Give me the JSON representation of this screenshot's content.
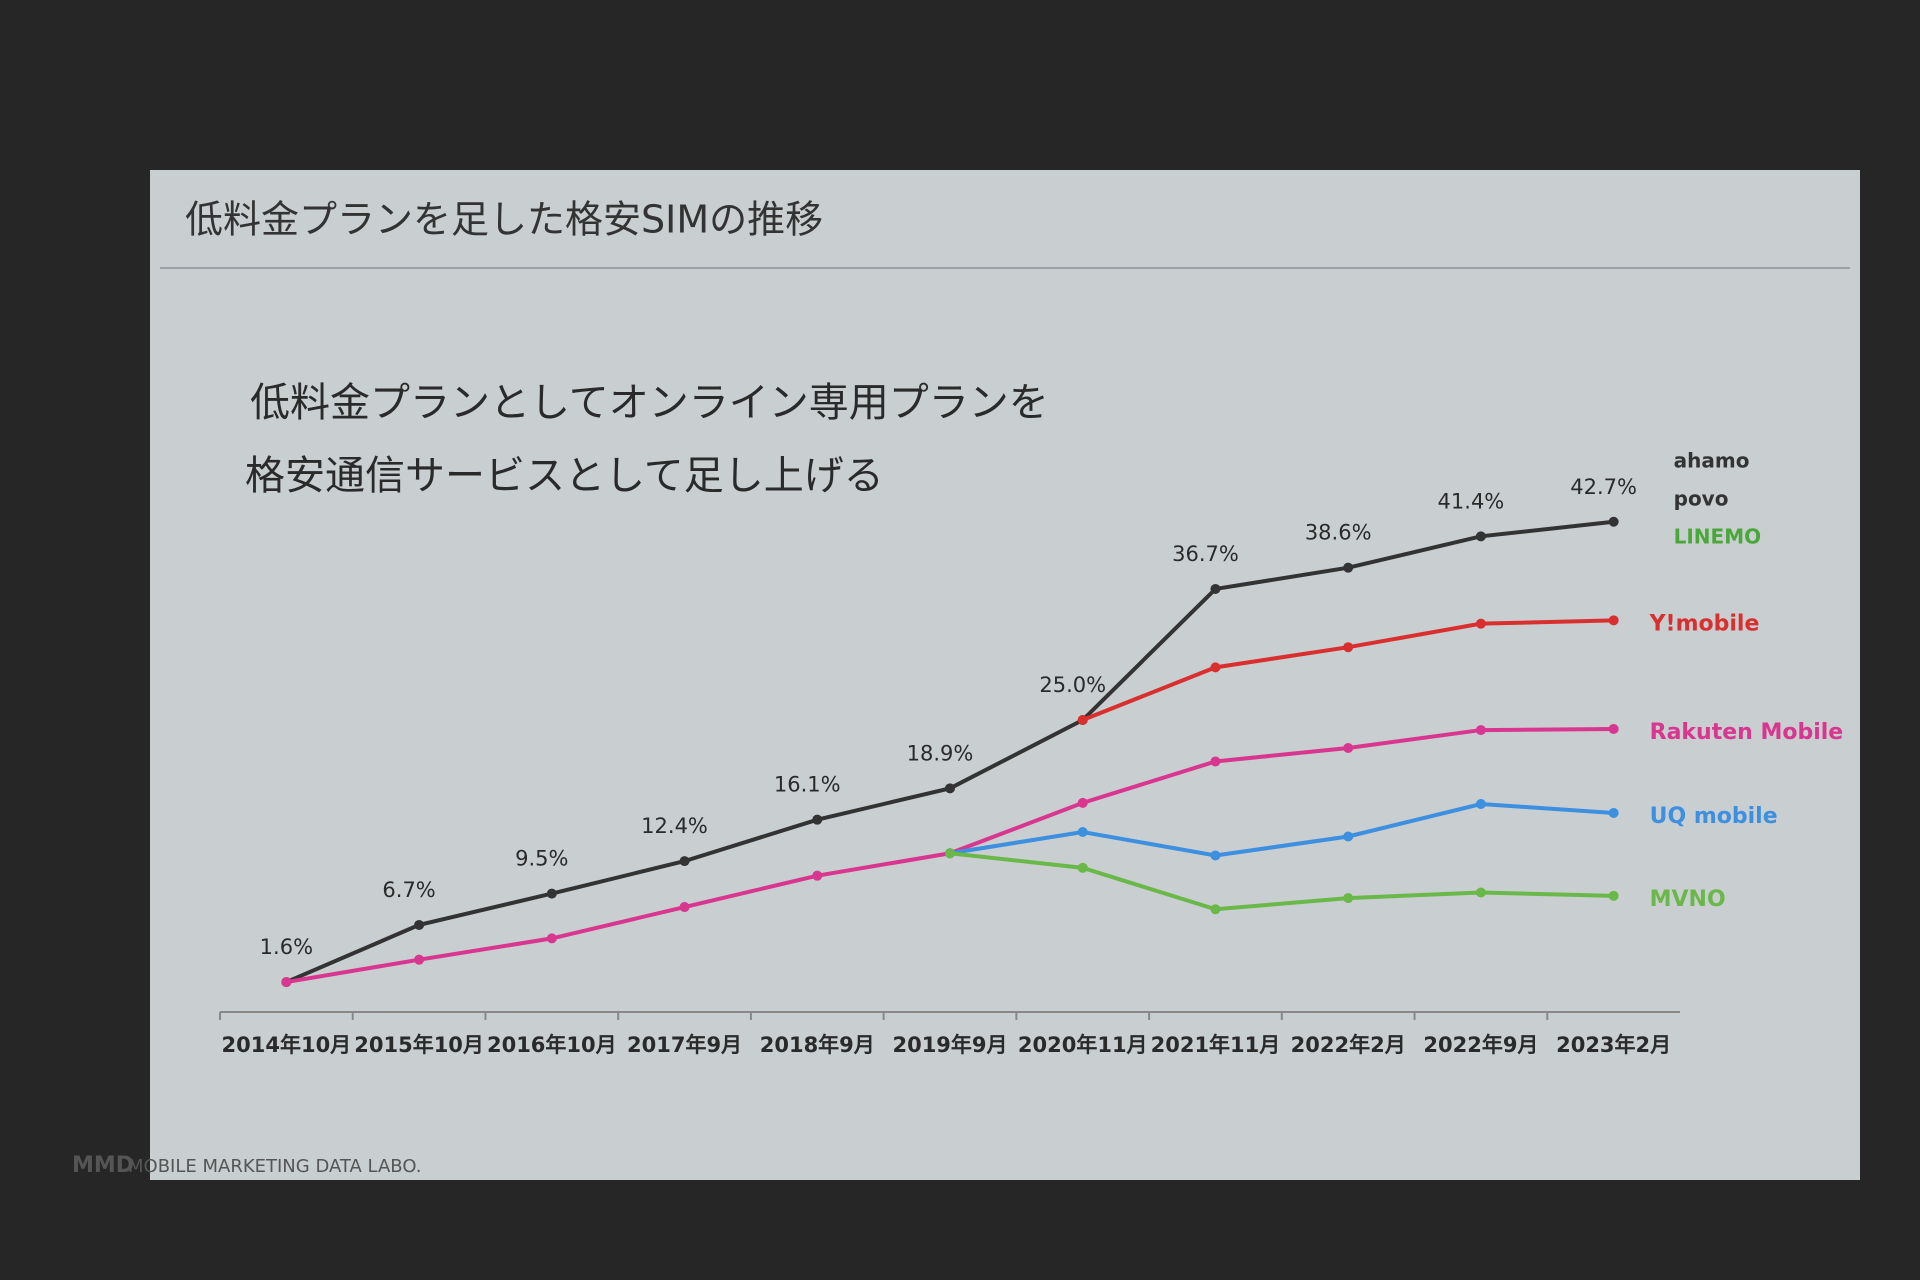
{
  "chart_data": {
    "type": "line",
    "title": "低料金プランを足した格安SIMの推移",
    "subtitle": [
      "低料金プランとしてオンライン専用プランを",
      "格安通信サービスとして足し上げる"
    ],
    "categories": [
      "2014年10月",
      "2015年10月",
      "2016年10月",
      "2017年9月",
      "2018年9月",
      "2019年9月",
      "2020年11月",
      "2021年11月",
      "2022年2月",
      "2022年9月",
      "2023年2月"
    ],
    "series": [
      {
        "color": "#333333",
        "values": [
          1.6,
          6.7,
          9.5,
          12.4,
          16.1,
          18.9,
          25.0,
          36.7,
          38.6,
          41.4,
          42.7
        ],
        "value_labels": [
          "1.6%",
          "6.7%",
          "9.5%",
          "12.4%",
          "16.1%",
          "18.9%",
          "25.0%",
          "36.7%",
          "38.6%",
          "41.4%",
          "42.7%"
        ],
        "end_labels": [
          "ahamo",
          "povo",
          "LINEMO"
        ]
      },
      {
        "name": "Y!mobile",
        "color": "#d9302f",
        "values": [
          null,
          null,
          null,
          null,
          null,
          null,
          25.0,
          29.7,
          31.5,
          33.6,
          33.9
        ]
      },
      {
        "name": "Rakuten Mobile",
        "color": "#d8368f",
        "values": [
          1.6,
          3.6,
          5.5,
          8.3,
          11.1,
          13.1,
          17.6,
          21.3,
          22.5,
          24.1,
          24.2
        ]
      },
      {
        "name": "UQ mobile",
        "color": "#3d8fe0",
        "values": [
          null,
          null,
          null,
          null,
          null,
          13.1,
          15.0,
          12.9,
          14.6,
          17.5,
          16.7
        ]
      },
      {
        "name": "MVNO",
        "color": "#6ab84a",
        "values": [
          null,
          null,
          null,
          null,
          null,
          13.1,
          11.8,
          8.1,
          9.1,
          9.6,
          9.3
        ]
      }
    ]
  },
  "footer": {
    "logo": "MMD",
    "text": "MOBILE MARKETING DATA LABO."
  }
}
